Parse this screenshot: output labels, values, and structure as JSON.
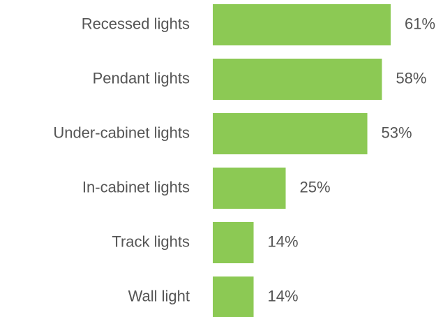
{
  "chart_data": {
    "type": "bar",
    "orientation": "horizontal",
    "categories": [
      "Recessed lights",
      "Pendant lights",
      "Under-cabinet lights",
      "In-cabinet lights",
      "Track lights",
      "Wall light"
    ],
    "values": [
      61,
      58,
      53,
      25,
      14,
      14
    ],
    "value_labels": [
      "61%",
      "58%",
      "53%",
      "25%",
      "14%",
      "14%"
    ],
    "color": "#8cc954"
  }
}
